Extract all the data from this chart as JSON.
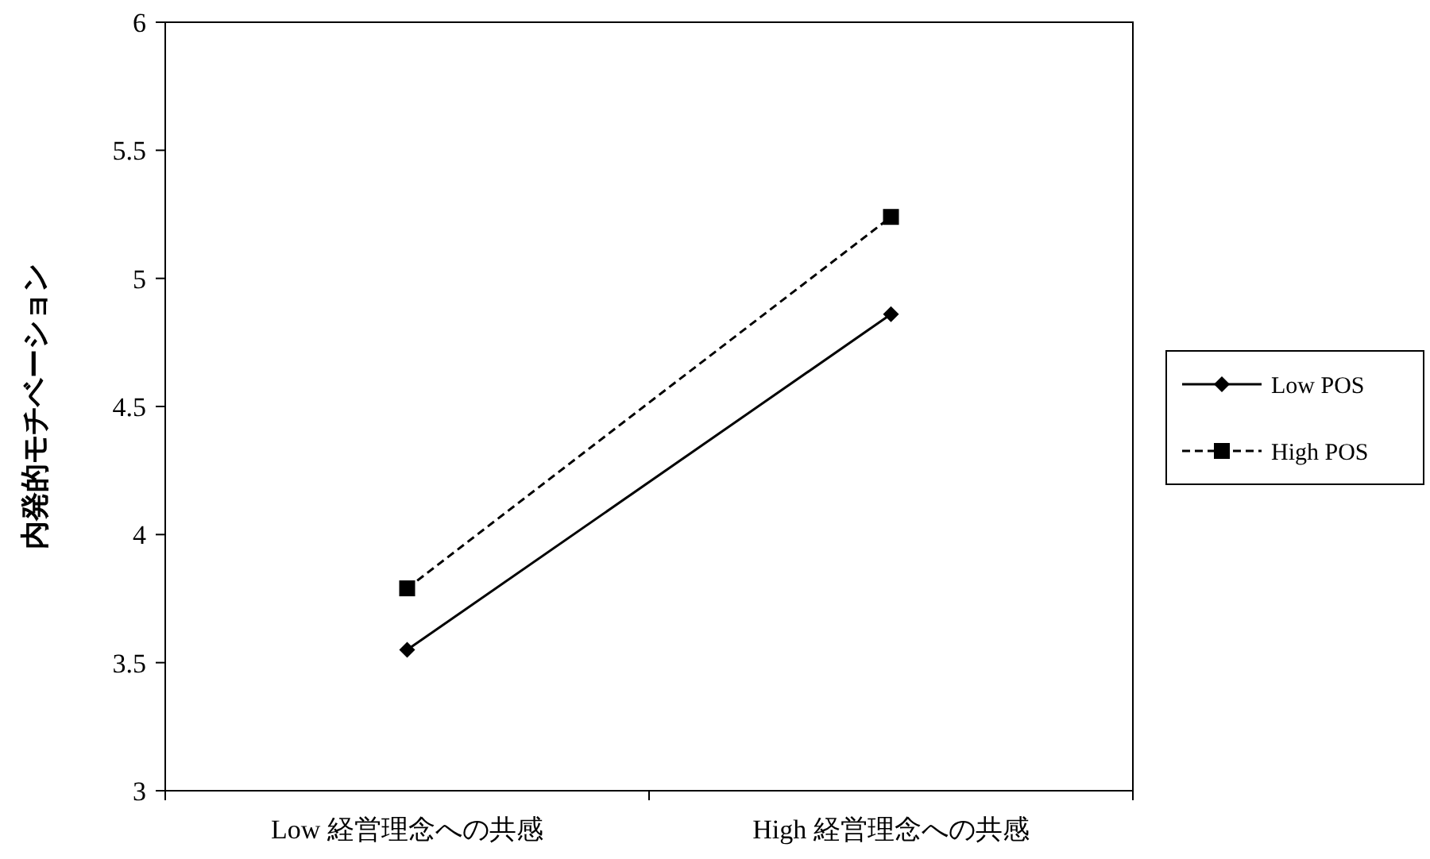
{
  "chart_data": {
    "type": "line",
    "ylabel": "内発的モチベーション",
    "categories": [
      "Low 経営理念への共感",
      "High 経営理念への共感"
    ],
    "series": [
      {
        "name": "Low POS",
        "color": "#000000",
        "values": [
          3.55,
          4.86
        ],
        "marker": "diamond",
        "line_style": "solid"
      },
      {
        "name": "High POS",
        "color": "#000000",
        "values": [
          3.79,
          5.24
        ],
        "marker": "square",
        "line_style": "dashed"
      }
    ],
    "ylim": [
      3,
      6
    ],
    "yticks": [
      3,
      3.5,
      4,
      4.5,
      5,
      5.5,
      6
    ],
    "legend": "right",
    "grid": false
  }
}
